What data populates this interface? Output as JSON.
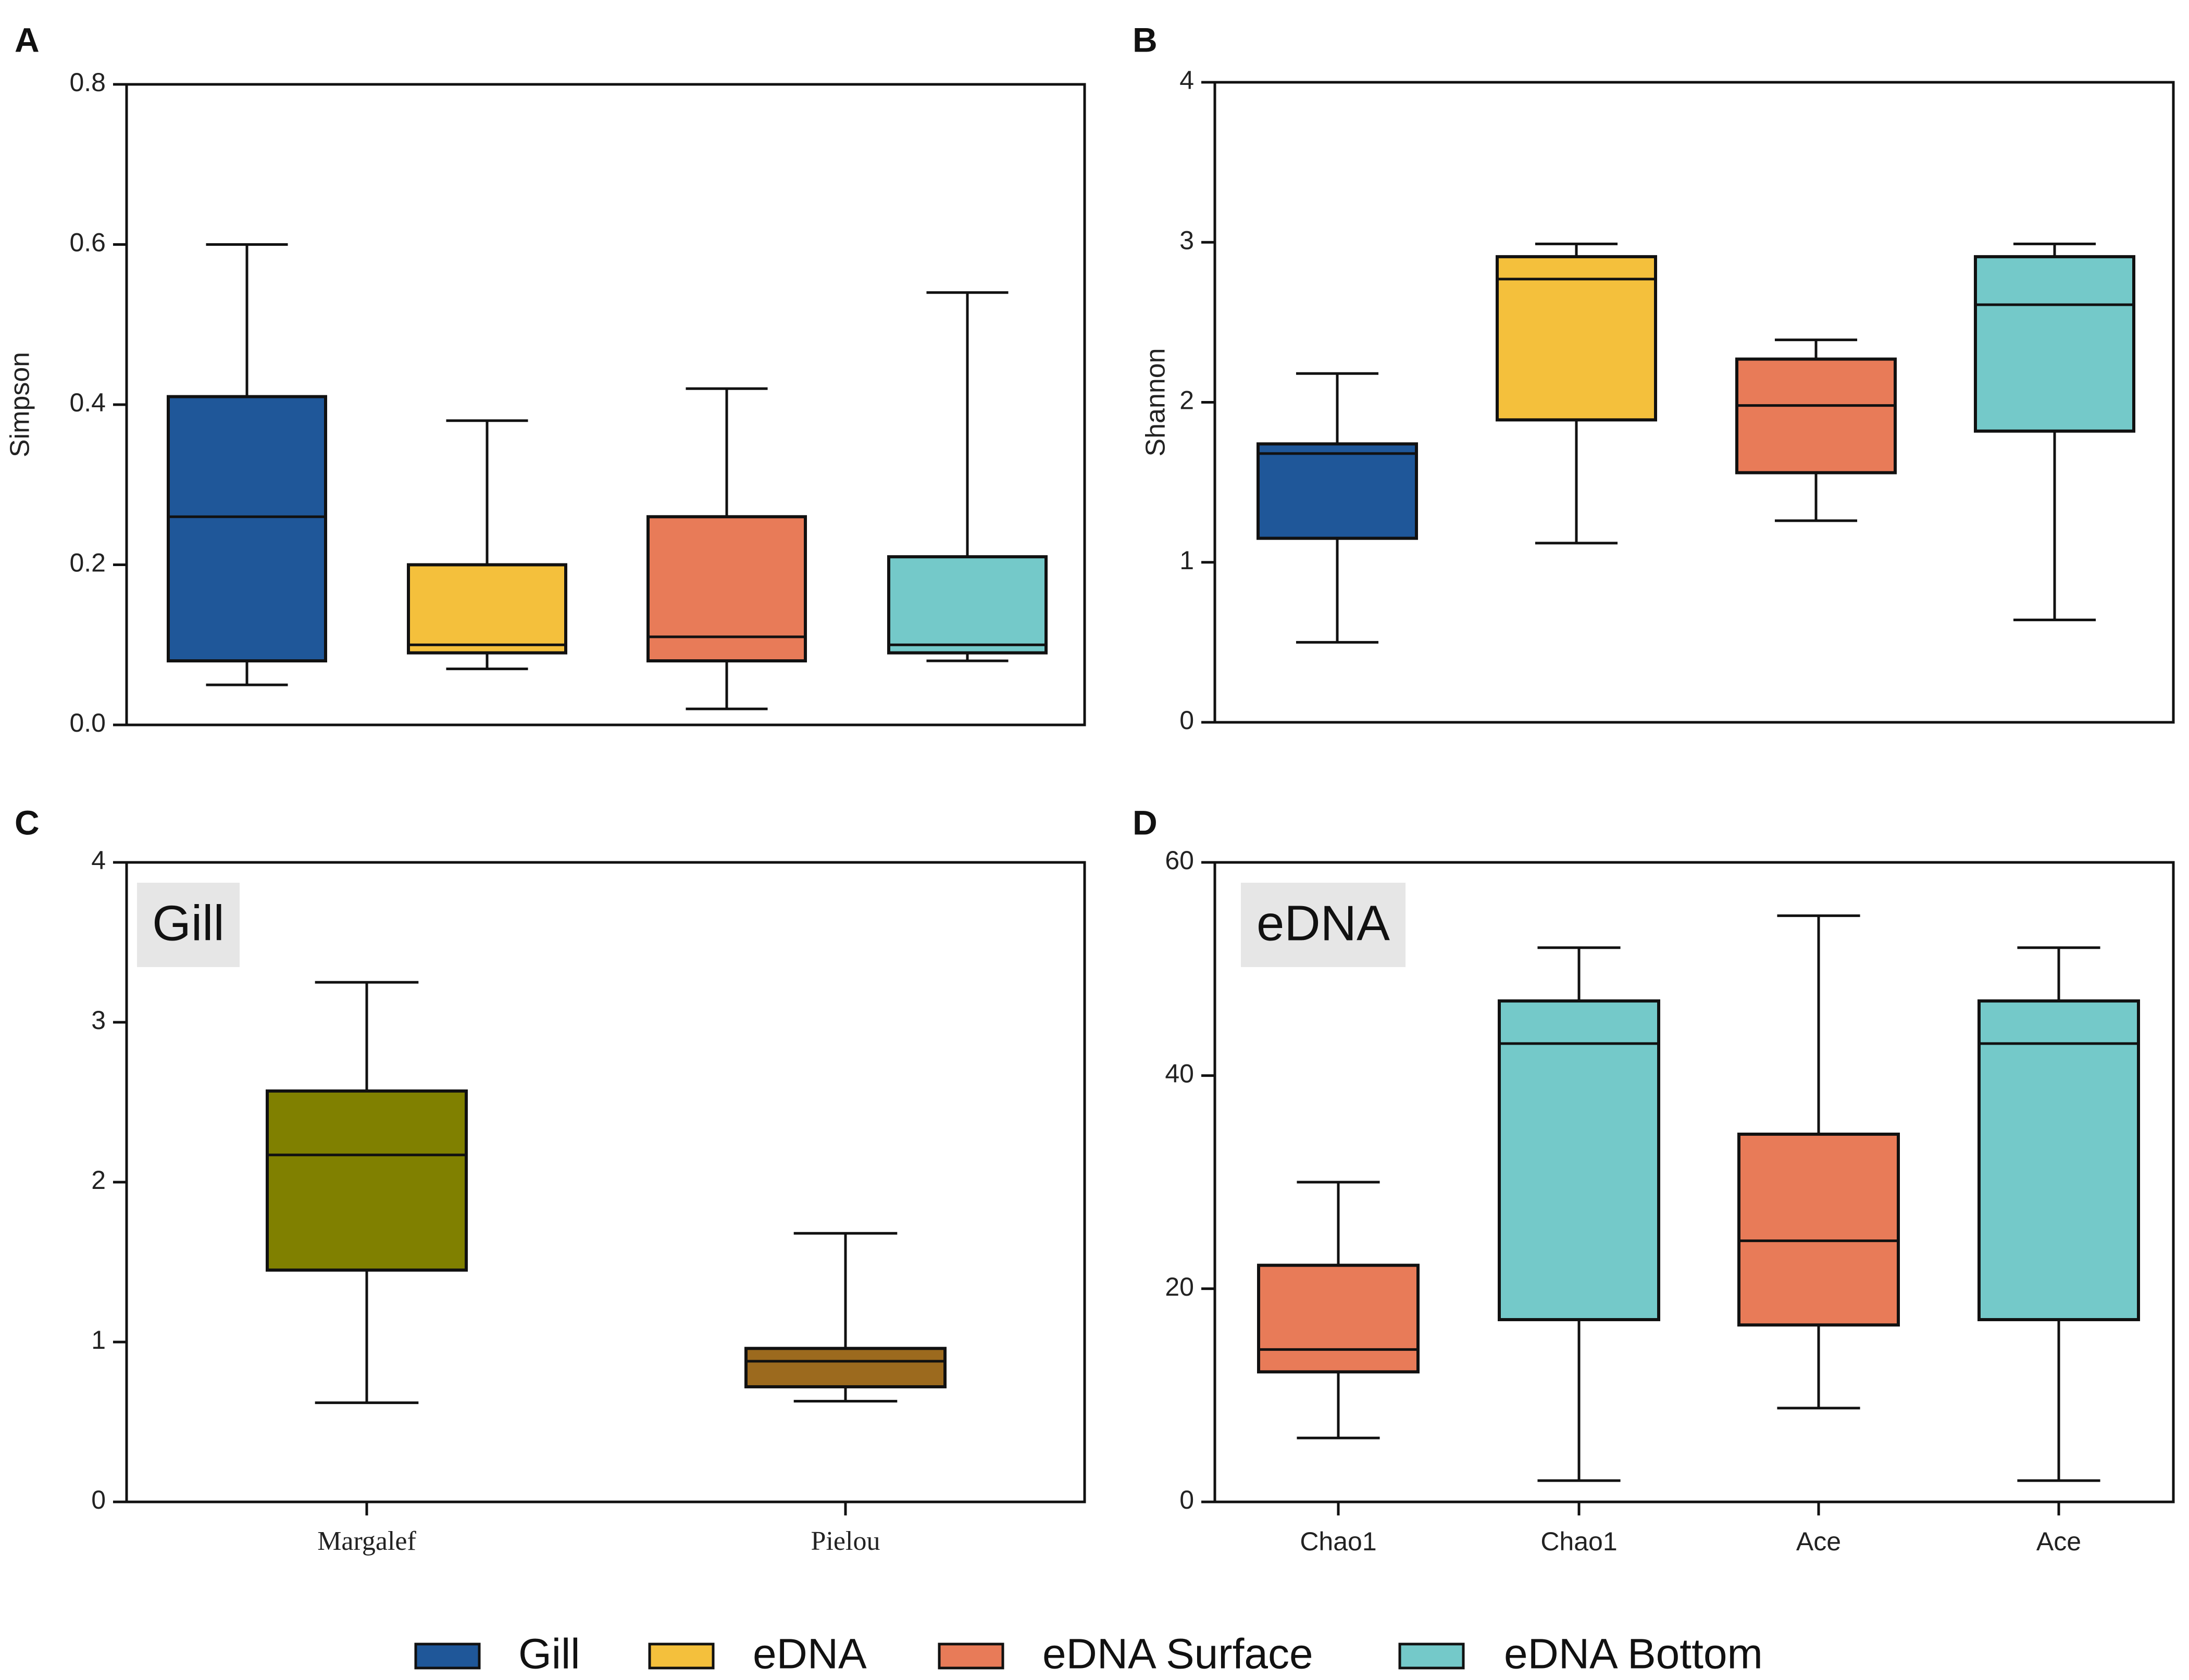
{
  "legend": [
    {
      "label": "Gill",
      "color": "#1f5799"
    },
    {
      "label": "eDNA",
      "color": "#f4c03c"
    },
    {
      "label": "eDNA Surface",
      "color": "#e87b58"
    },
    {
      "label": "eDNA Bottom",
      "color": "#74c9c9"
    }
  ],
  "chart_data": [
    {
      "panel": "A",
      "type": "box",
      "ylabel": "Simpson",
      "ylim": [
        0,
        0.8
      ],
      "yticks": [
        "0.0",
        "0.2",
        "0.4",
        "0.6",
        "0.8"
      ],
      "inset_label": "",
      "boxes": [
        {
          "category": "",
          "group": "Gill",
          "color": "#1f5799",
          "min": 0.05,
          "q1": 0.08,
          "median": 0.26,
          "q3": 0.41,
          "max": 0.6
        },
        {
          "category": "",
          "group": "eDNA",
          "color": "#f4c03c",
          "min": 0.07,
          "q1": 0.09,
          "median": 0.1,
          "q3": 0.2,
          "max": 0.38
        },
        {
          "category": "",
          "group": "eDNA Surface",
          "color": "#e87b58",
          "min": 0.02,
          "q1": 0.08,
          "median": 0.11,
          "q3": 0.26,
          "max": 0.42
        },
        {
          "category": "",
          "group": "eDNA Bottom",
          "color": "#74c9c9",
          "min": 0.08,
          "q1": 0.09,
          "median": 0.1,
          "q3": 0.21,
          "max": 0.54
        }
      ]
    },
    {
      "panel": "B",
      "type": "box",
      "ylabel": "Shannon",
      "ylim": [
        0,
        4
      ],
      "yticks": [
        "0",
        "1",
        "2",
        "3",
        "4"
      ],
      "inset_label": "",
      "boxes": [
        {
          "category": "",
          "group": "Gill",
          "color": "#1f5799",
          "min": 0.5,
          "q1": 1.15,
          "median": 1.68,
          "q3": 1.74,
          "max": 2.18
        },
        {
          "category": "",
          "group": "eDNA",
          "color": "#f4c03c",
          "min": 1.12,
          "q1": 1.89,
          "median": 2.77,
          "q3": 2.91,
          "max": 2.99
        },
        {
          "category": "",
          "group": "eDNA Surface",
          "color": "#e87b58",
          "min": 1.26,
          "q1": 1.56,
          "median": 1.98,
          "q3": 2.27,
          "max": 2.39
        },
        {
          "category": "",
          "group": "eDNA Bottom",
          "color": "#74c9c9",
          "min": 0.64,
          "q1": 1.82,
          "median": 2.61,
          "q3": 2.91,
          "max": 2.99
        }
      ]
    },
    {
      "panel": "C",
      "type": "box",
      "ylabel": "",
      "ylim": [
        0,
        4
      ],
      "yticks": [
        "0",
        "1",
        "2",
        "3",
        "4"
      ],
      "inset_label": "Gill",
      "boxes": [
        {
          "category": "Margalef",
          "group": "Gill",
          "color": "#808000",
          "min": 0.62,
          "q1": 1.45,
          "median": 2.17,
          "q3": 2.57,
          "max": 3.25
        },
        {
          "category": "Pielou",
          "group": "Gill",
          "color": "#9c6a1e",
          "min": 0.63,
          "q1": 0.72,
          "median": 0.88,
          "q3": 0.96,
          "max": 1.68
        }
      ]
    },
    {
      "panel": "D",
      "type": "box",
      "ylabel": "",
      "ylim": [
        0,
        60
      ],
      "yticks": [
        "0",
        "20",
        "40",
        "60"
      ],
      "inset_label": "eDNA",
      "boxes": [
        {
          "category": "Chao1",
          "group": "eDNA Surface",
          "color": "#e87b58",
          "min": 6,
          "q1": 12.2,
          "median": 14.3,
          "q3": 22.2,
          "max": 30
        },
        {
          "category": "Chao1",
          "group": "eDNA Bottom",
          "color": "#74c9c9",
          "min": 2,
          "q1": 17.1,
          "median": 43,
          "q3": 47,
          "max": 52
        },
        {
          "category": "Ace",
          "group": "eDNA Surface",
          "color": "#e87b58",
          "min": 8.8,
          "q1": 16.6,
          "median": 24.5,
          "q3": 34.5,
          "max": 55
        },
        {
          "category": "Ace",
          "group": "eDNA Bottom",
          "color": "#74c9c9",
          "min": 2,
          "q1": 17.1,
          "median": 43,
          "q3": 47,
          "max": 52
        }
      ]
    }
  ]
}
